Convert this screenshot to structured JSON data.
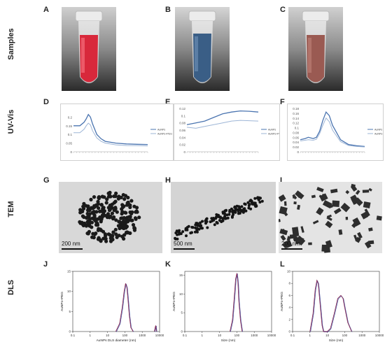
{
  "rows": {
    "samples": "Samples",
    "uvvis": "UV-Vis",
    "tem": "TEM",
    "dls": "DLS"
  },
  "panels": [
    "A",
    "B",
    "C",
    "D",
    "E",
    "F",
    "G",
    "H",
    "I",
    "J",
    "K",
    "L"
  ],
  "tem_scalebars": [
    "200 nm",
    "500 nm",
    "200 nm"
  ],
  "chart_data": [
    {
      "panel": "D",
      "type": "line",
      "series": [
        {
          "name": "AuNPs",
          "x": [
            450,
            480,
            500,
            510,
            520,
            530,
            540,
            560,
            580,
            600,
            650,
            700,
            750,
            800
          ],
          "values": [
            0.15,
            0.15,
            0.17,
            0.19,
            0.215,
            0.2,
            0.16,
            0.1,
            0.075,
            0.06,
            0.05,
            0.045,
            0.043,
            0.042
          ]
        },
        {
          "name": "AuNPs+PEG",
          "x": [
            450,
            480,
            500,
            510,
            520,
            530,
            540,
            560,
            580,
            600,
            650,
            700,
            750,
            800
          ],
          "values": [
            0.11,
            0.11,
            0.13,
            0.15,
            0.165,
            0.155,
            0.12,
            0.08,
            0.06,
            0.05,
            0.04,
            0.036,
            0.035,
            0.034
          ]
        }
      ],
      "ylim": [
        0,
        0.25
      ],
      "yticks": [
        "0",
        "0.05",
        "0.1",
        "0.15",
        "0.2"
      ],
      "legend": "right",
      "grid": false
    },
    {
      "panel": "E",
      "type": "line",
      "series": [
        {
          "name": "AuNPs",
          "x": [
            400,
            450,
            500,
            550,
            600,
            650,
            700,
            750,
            800
          ],
          "values": [
            0.075,
            0.08,
            0.085,
            0.095,
            0.105,
            0.11,
            0.113,
            0.112,
            0.11
          ]
        },
        {
          "name": "AuNPs+PEG",
          "x": [
            400,
            450,
            500,
            550,
            600,
            650,
            700,
            750,
            800
          ],
          "values": [
            0.068,
            0.065,
            0.07,
            0.075,
            0.08,
            0.085,
            0.087,
            0.086,
            0.085
          ]
        }
      ],
      "ylim": [
        0,
        0.12
      ],
      "yticks": [
        "0",
        "0.02",
        "0.04",
        "0.06",
        "0.08",
        "0.1",
        "0.12"
      ],
      "legend": "right",
      "grid": false
    },
    {
      "panel": "F",
      "type": "line",
      "series": [
        {
          "name": "AuNPs",
          "x": [
            400,
            430,
            450,
            480,
            500,
            520,
            540,
            560,
            580,
            600,
            650,
            700,
            750,
            800
          ],
          "values": [
            0.05,
            0.055,
            0.06,
            0.055,
            0.06,
            0.085,
            0.13,
            0.165,
            0.15,
            0.11,
            0.05,
            0.03,
            0.025,
            0.022
          ]
        },
        {
          "name": "AuNPs+PEG",
          "x": [
            400,
            430,
            450,
            480,
            500,
            520,
            540,
            560,
            580,
            600,
            650,
            700,
            750,
            800
          ],
          "values": [
            0.045,
            0.048,
            0.05,
            0.048,
            0.052,
            0.075,
            0.11,
            0.14,
            0.125,
            0.09,
            0.042,
            0.026,
            0.022,
            0.02
          ]
        }
      ],
      "ylim": [
        0,
        0.18
      ],
      "yticks": [
        "0",
        "0.02",
        "0.04",
        "0.06",
        "0.08",
        "0.1",
        "0.12",
        "0.14",
        "0.16",
        "0.18"
      ],
      "legend": "right",
      "grid": false
    },
    {
      "panel": "J",
      "type": "line",
      "xlabel": "AuNPs DLS diameter (nm)",
      "ylabel": "AuNPs+PEG",
      "xscale": "log",
      "xlim": [
        0.1,
        10000
      ],
      "xticks": [
        "0.1",
        "1",
        "10",
        "100",
        "1000",
        "10000"
      ],
      "ylim": [
        0,
        15
      ],
      "yticks": [
        "0",
        "5",
        "10",
        "15"
      ],
      "series": [
        {
          "x": [
            30,
            50,
            70,
            90,
            110,
            130,
            150,
            180,
            220,
            300
          ],
          "values": [
            0,
            2,
            6,
            10,
            12,
            11,
            8,
            4,
            1,
            0
          ]
        },
        {
          "x": [
            5000,
            5500,
            6000,
            6500
          ],
          "values": [
            0,
            1,
            1.5,
            0
          ]
        }
      ]
    },
    {
      "panel": "K",
      "type": "line",
      "xlabel": "Size (nm)",
      "ylabel": "AuNPs+PEG",
      "xscale": "log",
      "xlim": [
        0.1,
        10000
      ],
      "xticks": [
        "0.1",
        "1",
        "10",
        "100",
        "1000",
        "10000"
      ],
      "ylim": [
        0,
        16
      ],
      "yticks": [
        "0",
        "5",
        "10",
        "15"
      ],
      "series": [
        {
          "x": [
            40,
            55,
            70,
            85,
            100,
            115,
            130,
            160,
            200
          ],
          "values": [
            0,
            3,
            9,
            14,
            15.5,
            13,
            8,
            3,
            0
          ]
        }
      ]
    },
    {
      "panel": "L",
      "type": "line",
      "xlabel": "Size (nm)",
      "ylabel": "AuNPs+PEG",
      "xscale": "log",
      "xlim": [
        0.1,
        10000
      ],
      "xticks": [
        "0.1",
        "1",
        "10",
        "100",
        "1000",
        "10000"
      ],
      "ylim": [
        0,
        10
      ],
      "yticks": [
        "0",
        "2",
        "4",
        "6",
        "8",
        "10"
      ],
      "series": [
        {
          "x": [
            1,
            1.5,
            2,
            2.5,
            3,
            4,
            5,
            6,
            8,
            10,
            15,
            25,
            40,
            60,
            80,
            100,
            150,
            250
          ],
          "values": [
            0,
            3,
            7,
            8.5,
            8,
            4,
            1,
            0,
            0,
            0,
            0.5,
            3,
            5.5,
            6,
            5.5,
            4,
            1.5,
            0
          ]
        }
      ]
    }
  ],
  "colors": {
    "uv_dark": "#4a74b0",
    "uv_light": "#9db5d6",
    "dls_main": "#8a2a55",
    "dls_alt": "#3a4ea0",
    "red_sample": "#d8283b",
    "blue_sample": "#3a5e86",
    "brown_sample": "#9a5a52"
  }
}
